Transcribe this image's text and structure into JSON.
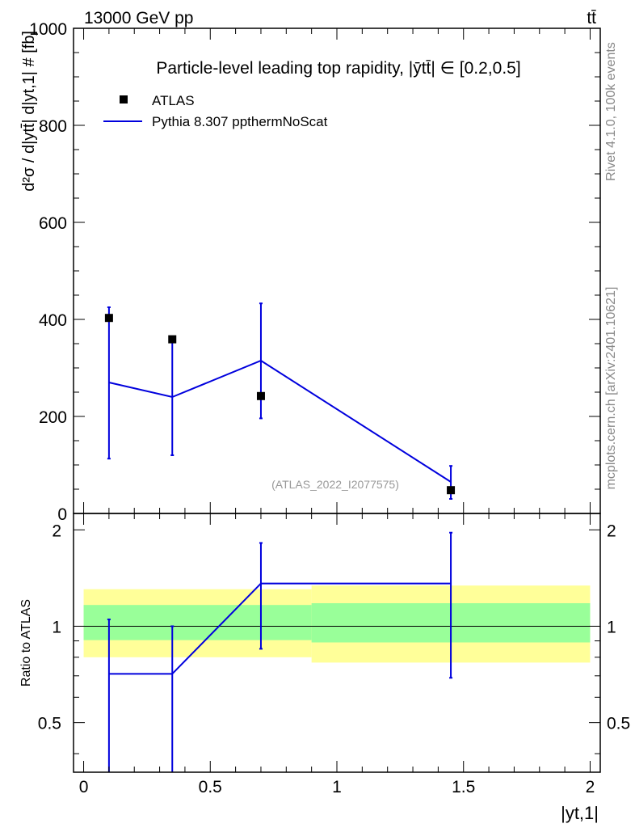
{
  "header": {
    "left": "13000 GeV pp",
    "right": "tt̄"
  },
  "side_labels": {
    "rivet": "Rivet 4.1.0,  100k events",
    "mcplots": "mcplots.cern.ch [arXiv:2401.10621]"
  },
  "chart_data": [
    {
      "type": "line",
      "panel": "main",
      "title": "Particle-level leading top rapidity, |ȳtt̄| ∈ [0.2,0.5]",
      "ylabel": "d²σ / d|ytt̄| d|yt,1| # [fb]",
      "ylim": [
        0,
        1000
      ],
      "yticks": [
        0,
        200,
        400,
        600,
        800,
        1000
      ],
      "xlim": [
        -0.04,
        2.04
      ],
      "annotation": "(ATLAS_2022_I2077575)",
      "legend_position": "top-left",
      "series": [
        {
          "name": "ATLAS",
          "style": "markers",
          "color": "#000000",
          "points": [
            {
              "x": 0.1,
              "y": 403
            },
            {
              "x": 0.35,
              "y": 359
            },
            {
              "x": 0.7,
              "y": 242
            },
            {
              "x": 1.45,
              "y": 48
            }
          ]
        },
        {
          "name": "Pythia 8.307 ppthermNoScat",
          "style": "line",
          "color": "#0000dd",
          "points": [
            {
              "x": 0.1,
              "y": 270,
              "lo": 113,
              "hi": 425
            },
            {
              "x": 0.35,
              "y": 240,
              "lo": 120,
              "hi": 360
            },
            {
              "x": 0.7,
              "y": 315,
              "lo": 196,
              "hi": 433
            },
            {
              "x": 1.45,
              "y": 65,
              "lo": 30,
              "hi": 98
            }
          ]
        }
      ]
    },
    {
      "type": "line",
      "panel": "ratio",
      "ylabel": "Ratio to ATLAS",
      "xlabel": "|yt,1|",
      "ylim": [
        0.35,
        2.25
      ],
      "yticks": [
        0.5,
        1,
        2
      ],
      "xlim": [
        -0.04,
        2.04
      ],
      "xticks": [
        0,
        0.5,
        1,
        1.5,
        2
      ],
      "xtick_labels": [
        "0",
        "0.5",
        "1",
        "1.5",
        "2"
      ],
      "bands": [
        {
          "x0": 0.0,
          "x1": 0.9,
          "inner": [
            0.905,
            1.165
          ],
          "outer": [
            0.8,
            1.305
          ]
        },
        {
          "x0": 0.9,
          "x1": 2.0,
          "inner": [
            0.89,
            1.18
          ],
          "outer": [
            0.77,
            1.34
          ]
        }
      ],
      "band_colors": {
        "inner": "#99ff99",
        "outer": "#ffff99"
      },
      "series": [
        {
          "name": "Pythia 8.307 ppthermNoScat",
          "color": "#0000dd",
          "steps": [
            {
              "x0": 0.1,
              "x1": 0.35,
              "y": 0.71
            },
            {
              "x0": 0.7,
              "x1": 1.45,
              "y": 1.36
            }
          ],
          "rising_link": {
            "x0": 0.35,
            "y0": 0.71,
            "x1": 0.7,
            "y1": 1.36
          },
          "errors": [
            {
              "x": 0.1,
              "lo": 0.35,
              "hi": 1.05
            },
            {
              "x": 0.35,
              "lo": 0.35,
              "hi": 1.0
            },
            {
              "x": 0.7,
              "lo": 0.85,
              "hi": 1.82
            },
            {
              "x": 1.45,
              "lo": 0.69,
              "hi": 1.96
            }
          ]
        }
      ]
    }
  ]
}
